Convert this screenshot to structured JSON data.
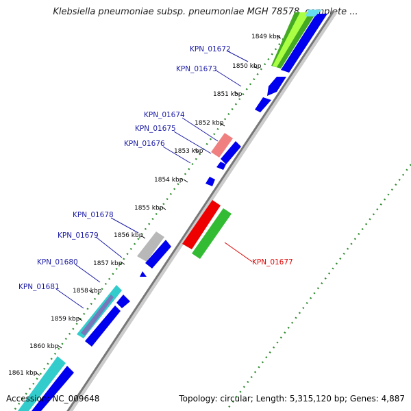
{
  "title": "Klebsiella pneumoniae subsp. pneumoniae MGH 78578, complete ...",
  "footer": {
    "accession": "Accession: NC_009648",
    "topology": "Topology: circular; Length: 5,315,120 bp; Genes: 4,887"
  },
  "ticks": [
    {
      "label": "1849 kbp"
    },
    {
      "label": "1850 kbp"
    },
    {
      "label": "1851 kbp"
    },
    {
      "label": "1852 kbp"
    },
    {
      "label": "1853 kbp"
    },
    {
      "label": "1854 kbp"
    },
    {
      "label": "1855 kbp"
    },
    {
      "label": "1856 kbp"
    },
    {
      "label": "1857 kbp"
    },
    {
      "label": "1858 kbp"
    },
    {
      "label": "1859 kbp"
    },
    {
      "label": "1860 kbp"
    },
    {
      "label": "1861 kbp"
    }
  ],
  "gene_labels": [
    {
      "label": "KPN_01672",
      "color": "#1a1aa6"
    },
    {
      "label": "KPN_01673",
      "color": "#1a1aa6"
    },
    {
      "label": "KPN_01674",
      "color": "#1a1aa6"
    },
    {
      "label": "KPN_01675",
      "color": "#1a1aa6"
    },
    {
      "label": "KPN_01676",
      "color": "#1a1aa6"
    },
    {
      "label": "KPN_01678",
      "color": "#1a1aa6"
    },
    {
      "label": "KPN_01679",
      "color": "#1a1aa6"
    },
    {
      "label": "KPN_01680",
      "color": "#1a1aa6"
    },
    {
      "label": "KPN_01681",
      "color": "#1a1aa6"
    },
    {
      "label": "KPN_01677",
      "color": "#dd0000"
    }
  ],
  "colors": {
    "backbone": "#888888",
    "forward_cds": "#0000ee",
    "reverse_cds": "#ee0000",
    "gc_skew": "#2e8b2e",
    "highlight_green": "#66cc33",
    "highlight_cyan": "#33cccc",
    "highlight_gray": "#b0b0b0",
    "highlight_pink": "#f08080"
  }
}
